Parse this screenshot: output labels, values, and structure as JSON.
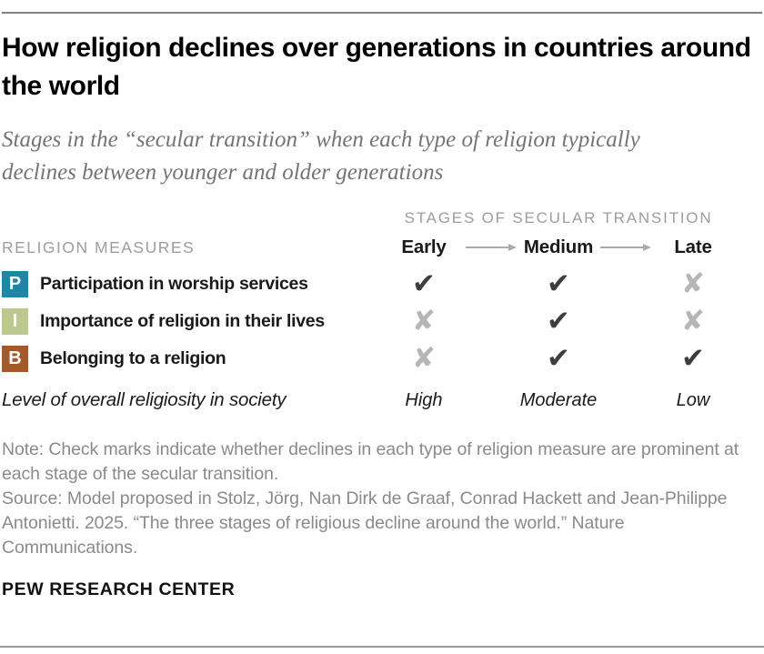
{
  "header": {
    "title": "How religion declines over generations in countries around the world",
    "subtitle": "Stages in the “secular transition” when each type of religion typically declines between younger and older generations"
  },
  "table": {
    "stages_header": "STAGES OF SECULAR TRANSITION",
    "measures_header": "RELIGION MEASURES",
    "stages": [
      "Early",
      "Medium",
      "Late"
    ],
    "rows": [
      {
        "badge": "P",
        "badge_color": "#1e87a9",
        "label": "Participation in worship services",
        "marks": [
          "check",
          "check",
          "x"
        ]
      },
      {
        "badge": "I",
        "badge_color": "#bdc88f",
        "label": "Importance of religion in their lives",
        "marks": [
          "x",
          "check",
          "x"
        ]
      },
      {
        "badge": "B",
        "badge_color": "#a4592b",
        "label": "Belonging to a religion",
        "marks": [
          "x",
          "check",
          "check"
        ]
      }
    ],
    "summary_row": {
      "label": "Level of overall religiosity in society",
      "values": [
        "High",
        "Moderate",
        "Low"
      ]
    },
    "mark_glyphs": {
      "check": "✔",
      "x": "✘"
    },
    "mark_colors": {
      "check": "#3e3e3e",
      "x": "#b6b6b6"
    },
    "arrow_color": "#ababab"
  },
  "footer": {
    "note": "Note: Check marks indicate whether declines in each type of religion measure are prominent at each stage of the secular transition.",
    "source": "Source: Model proposed in Stolz, Jörg, Nan Dirk de Graaf, Conrad Hackett and Jean-Philippe Antonietti. 2025. “The three stages of religious decline around the world.” Nature Communications.",
    "brand": "PEW RESEARCH CENTER"
  },
  "chart_data": {
    "type": "table",
    "title": "How religion declines over generations in countries around the world",
    "subtitle": "Stages in the “secular transition” when each type of religion typically declines between younger and older generations",
    "column_group_label": "STAGES OF SECULAR TRANSITION",
    "row_group_label": "RELIGION MEASURES",
    "columns": [
      "Early",
      "Medium",
      "Late"
    ],
    "rows": [
      {
        "label": "Participation in worship services",
        "values": [
          "check",
          "check",
          "x"
        ]
      },
      {
        "label": "Importance of religion in their lives",
        "values": [
          "x",
          "check",
          "x"
        ]
      },
      {
        "label": "Belonging to a religion",
        "values": [
          "x",
          "check",
          "check"
        ]
      }
    ],
    "summary": {
      "label": "Level of overall religiosity in society",
      "values": [
        "High",
        "Moderate",
        "Low"
      ]
    }
  }
}
